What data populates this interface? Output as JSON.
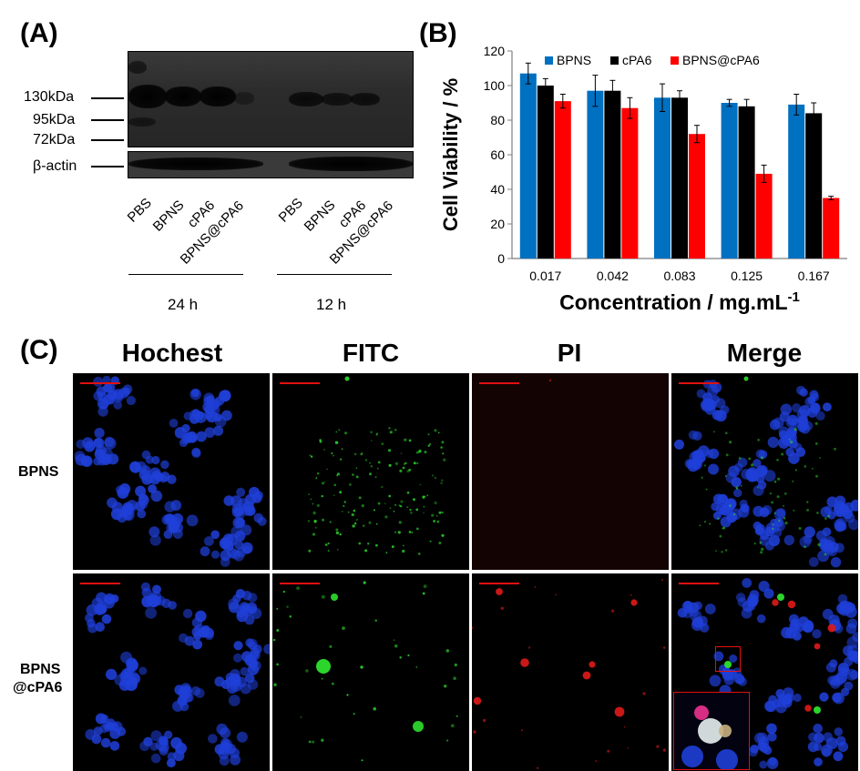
{
  "panel_a": {
    "letter": "(A)",
    "mw_markers": [
      "130kDa",
      "95kDa",
      "72kDa"
    ],
    "loading_label": "β-actin",
    "lanes_24h": [
      "PBS",
      "BPNS",
      "cPA6",
      "BPNS@cPA6"
    ],
    "lanes_12h": [
      "PBS",
      "BPNS",
      "cPA6",
      "BPNS@cPA6"
    ],
    "time_24h": "24 h",
    "time_12h": "12 h"
  },
  "panel_b": {
    "letter": "(B)"
  },
  "chart_data": {
    "type": "bar",
    "categories": [
      "0.017",
      "0.042",
      "0.083",
      "0.125",
      "0.167"
    ],
    "series": [
      {
        "name": "BPNS",
        "color": "#0070c0",
        "values": [
          107,
          97,
          93,
          90,
          89
        ],
        "errors": [
          6,
          9,
          8,
          2,
          6
        ]
      },
      {
        "name": "cPA6",
        "color": "#000000",
        "values": [
          100,
          97,
          93,
          88,
          84
        ],
        "errors": [
          4,
          6,
          4,
          4,
          6
        ]
      },
      {
        "name": "BPNS@cPA6",
        "color": "#ff0000",
        "values": [
          91,
          87,
          72,
          49,
          35
        ],
        "errors": [
          4,
          6,
          5,
          5,
          1
        ]
      }
    ],
    "ylabel": "Cell Viability / %",
    "xlabel": "Concentration / mg.mL",
    "xlabel_sup": "-1",
    "ylim": [
      0,
      120
    ],
    "yticks": [
      "0",
      "20",
      "40",
      "60",
      "80",
      "100",
      "120"
    ],
    "grid": false,
    "legend_position": "top"
  },
  "panel_c": {
    "letter": "(C)",
    "columns": [
      "Hochest",
      "FITC",
      "PI",
      "Merge"
    ],
    "rows": [
      {
        "label_lines": [
          "BPNS"
        ]
      },
      {
        "label_lines": [
          "BPNS",
          "@cPA6"
        ]
      }
    ],
    "colors": {
      "nuclei": "#1f3fd8",
      "fitc": "#2ee02e",
      "pi": "#e01a1a",
      "scale_bar": "#e01010"
    }
  }
}
